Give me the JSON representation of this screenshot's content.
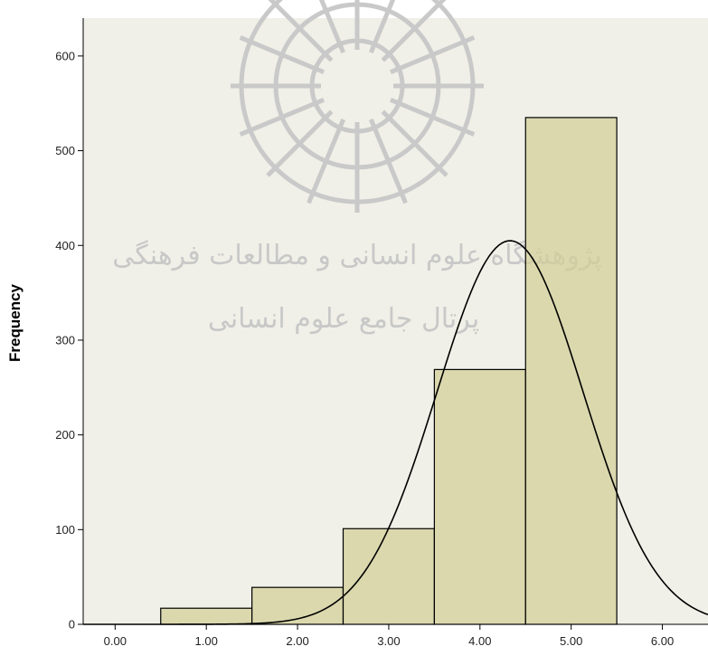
{
  "chart_data": {
    "type": "bar",
    "variant": "histogram-with-normal-curve",
    "title": "",
    "xlabel": "",
    "ylabel": "Frequency",
    "xlim": [
      -0.35,
      6.5
    ],
    "ylim": [
      0,
      640
    ],
    "x_ticks": [
      0,
      1,
      2,
      3,
      4,
      5,
      6
    ],
    "x_tick_labels": [
      "0.00",
      "1.00",
      "2.00",
      "3.00",
      "4.00",
      "5.00",
      "6.00"
    ],
    "y_ticks": [
      0,
      100,
      200,
      300,
      400,
      500,
      600
    ],
    "y_tick_labels": [
      "0",
      "100",
      "200",
      "300",
      "400",
      "500",
      "600"
    ],
    "bins": [
      {
        "from": 0.5,
        "to": 1.5,
        "value": 17
      },
      {
        "from": 1.5,
        "to": 2.5,
        "value": 39
      },
      {
        "from": 2.5,
        "to": 3.5,
        "value": 101
      },
      {
        "from": 3.5,
        "to": 4.5,
        "value": 269
      },
      {
        "from": 4.5,
        "to": 5.5,
        "value": 535
      }
    ],
    "normal_curve": {
      "peak_x": 4.33,
      "peak_y": 405,
      "sd": 0.8
    },
    "grid": false,
    "legend": "none",
    "colors": {
      "plot_background": "#f0f0e8",
      "bar_fill": "#d3cf97",
      "bar_stroke": "#000000",
      "curve": "#000000",
      "axis": "#000000"
    }
  },
  "watermark": {
    "line1": "پژوهشگاه علوم انسانی و مطالعات فرهنگی",
    "line2": "پرتال جامع علوم انسانی"
  }
}
